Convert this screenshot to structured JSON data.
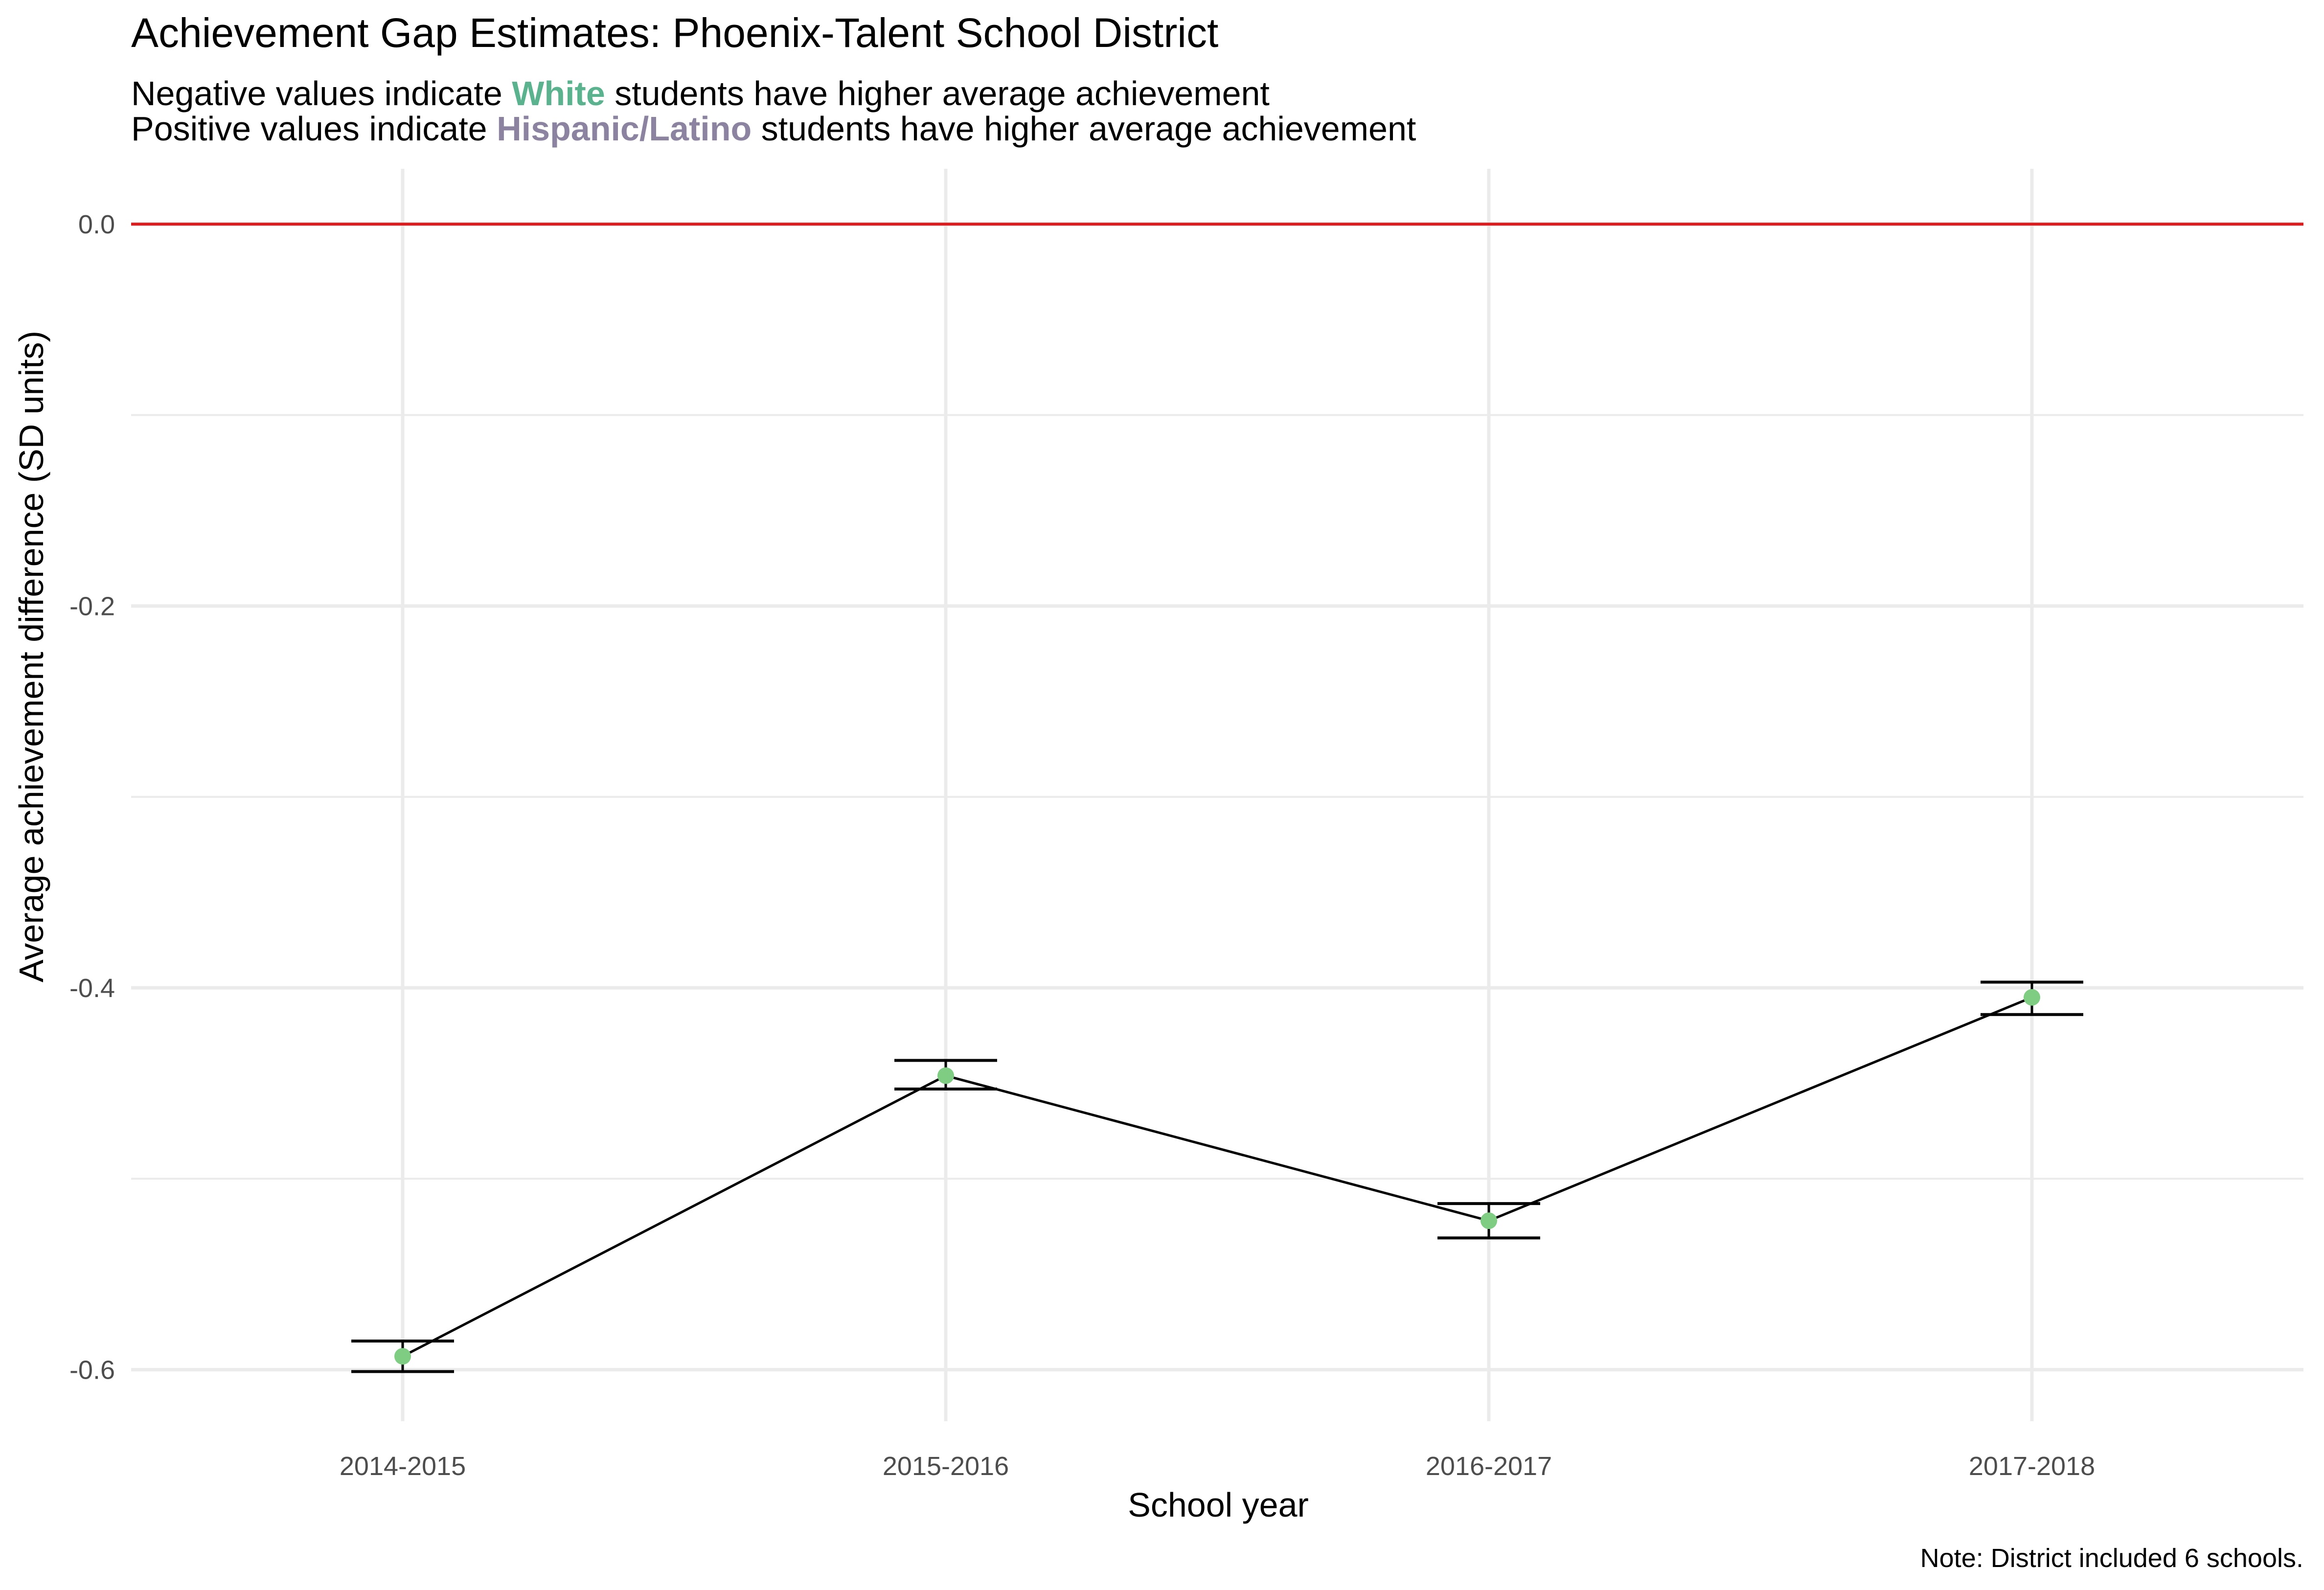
{
  "chart_data": {
    "type": "line",
    "title": "Achievement Gap Estimates: Phoenix-Talent School District",
    "subtitle_lines": [
      {
        "prefix": "Negative values indicate ",
        "highlight": "White",
        "suffix": " students have higher average achievement"
      },
      {
        "prefix": "Positive values indicate ",
        "highlight": "Hispanic/Latino",
        "suffix": " students have higher average achievement"
      }
    ],
    "xlabel": "School year",
    "ylabel": "Average achievement difference (SD units)",
    "caption": "Note: District included 6 schools.",
    "categories": [
      "2014-2015",
      "2015-2016",
      "2016-2017",
      "2017-2018"
    ],
    "values": [
      -0.593,
      -0.446,
      -0.522,
      -0.405
    ],
    "error_lower": [
      -0.601,
      -0.453,
      -0.531,
      -0.414
    ],
    "error_upper": [
      -0.585,
      -0.438,
      -0.513,
      -0.397
    ],
    "reference_line": 0.0,
    "ylim": [
      -0.627,
      0.029
    ],
    "y_ticks": [
      0.0,
      -0.2,
      -0.4,
      -0.6
    ],
    "y_tick_labels": [
      "0.0",
      "-0.2",
      "-0.4",
      "-0.6"
    ],
    "grid": true,
    "colors": {
      "point": "#7fcc83",
      "line": "#000000",
      "reference": "#e31a1c",
      "grid": "#ebebeb",
      "white_highlight": "#5ab38e",
      "hispanic_highlight": "#8c83a0"
    }
  }
}
